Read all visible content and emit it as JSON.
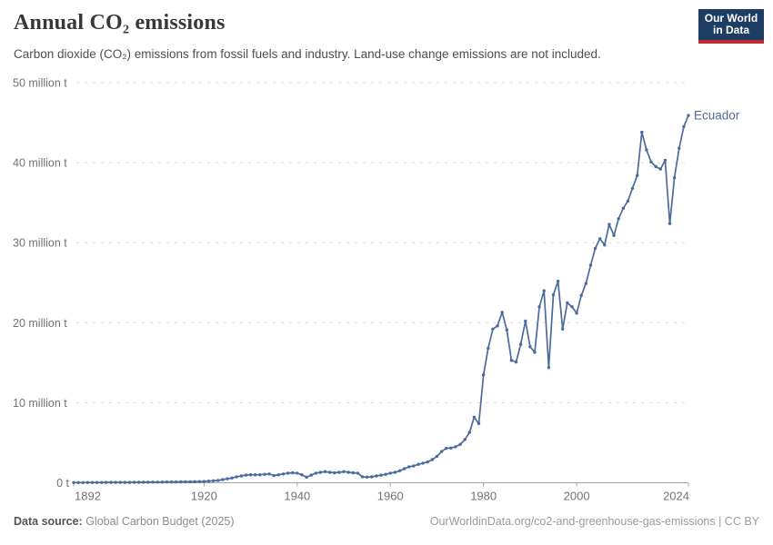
{
  "header": {
    "title": "Annual CO₂ emissions",
    "subtitle": "Carbon dioxide (CO₂) emissions from fossil fuels and industry. Land-use change emissions are not included.",
    "logo": {
      "line1": "Our World",
      "line2": "in Data",
      "bg_color": "#1d3d63",
      "bar_color": "#c22d35"
    }
  },
  "footer": {
    "source_label": "Data source:",
    "source_value": " Global Carbon Budget (2025)",
    "link_text": "OurWorldinData.org/co2-and-greenhouse-gas-emissions | CC BY"
  },
  "chart_data": {
    "type": "line",
    "title": "Annual CO₂ emissions",
    "unit": "million t",
    "xlim": [
      1892,
      2024
    ],
    "ylim": [
      0,
      50
    ],
    "grid": "dashed-horizontal",
    "legend_position": "end-of-line-label",
    "x_ticks": [
      1892,
      1920,
      1940,
      1960,
      1980,
      2000,
      2024
    ],
    "y_ticks": [
      {
        "value": 0,
        "label": "0 t"
      },
      {
        "value": 10,
        "label": "10 million t"
      },
      {
        "value": 20,
        "label": "20 million t"
      },
      {
        "value": 30,
        "label": "30 million t"
      },
      {
        "value": 40,
        "label": "40 million t"
      },
      {
        "value": 50,
        "label": "50 million t"
      }
    ],
    "series": [
      {
        "name": "Ecuador",
        "color": "#4C6A9C",
        "start_year": 1892,
        "end_year": 2024,
        "values": [
          0.02,
          0.02,
          0.02,
          0.03,
          0.03,
          0.03,
          0.03,
          0.04,
          0.04,
          0.04,
          0.05,
          0.05,
          0.05,
          0.06,
          0.06,
          0.07,
          0.07,
          0.08,
          0.08,
          0.09,
          0.1,
          0.1,
          0.1,
          0.11,
          0.12,
          0.13,
          0.14,
          0.15,
          0.16,
          0.2,
          0.25,
          0.3,
          0.4,
          0.5,
          0.6,
          0.75,
          0.85,
          0.95,
          1.0,
          1.0,
          1.0,
          1.05,
          1.1,
          0.9,
          1.0,
          1.1,
          1.2,
          1.25,
          1.2,
          1.0,
          0.7,
          0.95,
          1.2,
          1.3,
          1.4,
          1.3,
          1.25,
          1.3,
          1.4,
          1.3,
          1.25,
          1.2,
          0.75,
          0.7,
          0.75,
          0.85,
          0.95,
          1.05,
          1.2,
          1.3,
          1.5,
          1.75,
          2.0,
          2.1,
          2.3,
          2.45,
          2.6,
          2.9,
          3.3,
          3.9,
          4.3,
          4.35,
          4.5,
          4.8,
          5.4,
          6.3,
          8.2,
          7.4,
          13.5,
          16.8,
          19.2,
          19.6,
          21.3,
          19.1,
          15.3,
          15.1,
          17.3,
          20.2,
          17.0,
          16.3,
          22.0,
          24.0,
          14.4,
          23.5,
          25.2,
          19.2,
          22.5,
          22.0,
          21.2,
          23.4,
          24.9,
          27.2,
          29.3,
          30.5,
          29.7,
          32.3,
          30.9,
          33.0,
          34.3,
          35.2,
          36.8,
          38.4,
          43.8,
          41.6,
          40.1,
          39.5,
          39.2,
          40.3,
          32.4,
          38.1,
          41.8,
          44.5,
          45.9
        ]
      }
    ]
  }
}
